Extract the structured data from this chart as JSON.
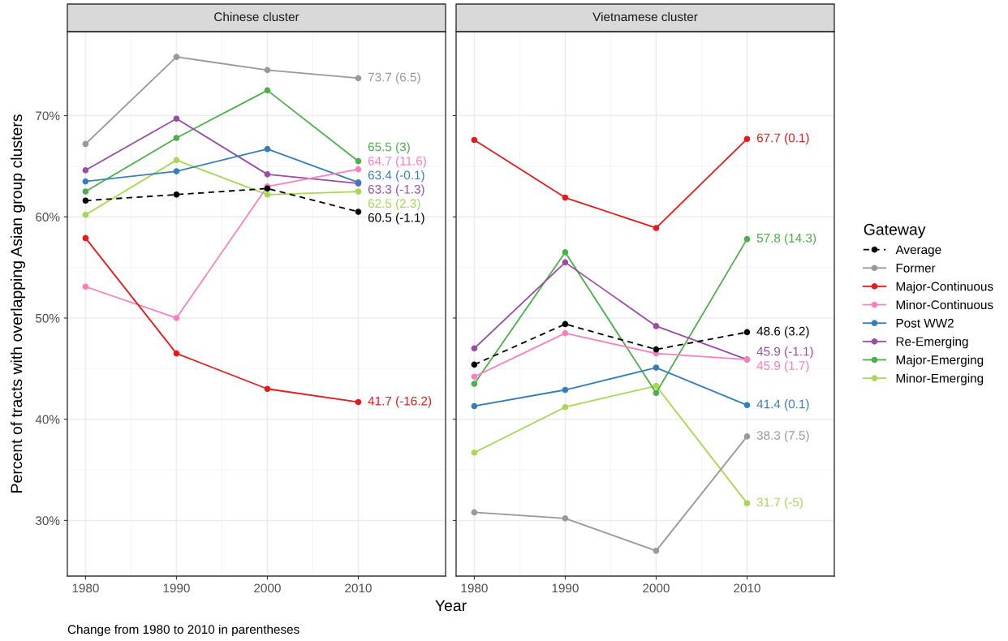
{
  "chart_data": [
    {
      "type": "line",
      "title": "Chinese cluster",
      "ylabel": "Percent of tracts with overlapping Asian group clusters",
      "xlabel": "Year",
      "annotations": [
        "Change from 1980 to 2010 in parentheses"
      ],
      "x": [
        1980,
        1990,
        2000,
        2010
      ],
      "xlim": [
        1978.0,
        2019.6
      ],
      "xticks": [
        1980,
        1990,
        2000,
        2010
      ],
      "ylim": [
        24.5,
        78.3
      ],
      "yticks": [
        {
          "value": 30,
          "label": "30%"
        },
        {
          "value": 40,
          "label": "40%"
        },
        {
          "value": 50,
          "label": "50%"
        },
        {
          "value": 60,
          "label": "60%"
        },
        {
          "value": 70,
          "label": "70%"
        }
      ],
      "grid": true,
      "marker": "circle",
      "legend": "right",
      "series": [
        {
          "name": "Average",
          "color": "#000000",
          "line_style": "dashed",
          "values": [
            61.6,
            62.2,
            62.8,
            60.5
          ],
          "value_labels": [
            null,
            null,
            null,
            "60.5 (-1.1)"
          ]
        },
        {
          "name": "Former",
          "color": "#999999",
          "values": [
            67.2,
            75.8,
            74.5,
            73.7
          ],
          "value_labels": [
            null,
            null,
            null,
            "73.7 (6.5)"
          ]
        },
        {
          "name": "Major-Continuous",
          "color": "#e41a1c",
          "values": [
            57.9,
            46.5,
            43.0,
            41.7
          ],
          "value_labels": [
            null,
            null,
            null,
            "41.7 (-16.2)"
          ]
        },
        {
          "name": "Minor-Continuous",
          "color": "#f781bf",
          "values": [
            53.1,
            50.0,
            63.0,
            64.7
          ],
          "value_labels": [
            null,
            null,
            null,
            "64.7 (11.6)"
          ]
        },
        {
          "name": "Post WW2",
          "color": "#377eb8",
          "values": [
            63.5,
            64.5,
            66.7,
            63.4
          ],
          "value_labels": [
            null,
            null,
            null,
            "63.4 (-0.1)"
          ]
        },
        {
          "name": "Re-Emerging",
          "color": "#984ea3",
          "values": [
            64.6,
            69.7,
            64.2,
            63.3
          ],
          "value_labels": [
            null,
            null,
            null,
            "63.3 (-1.3)"
          ]
        },
        {
          "name": "Major-Emerging",
          "color": "#4daf4a",
          "values": [
            62.5,
            67.8,
            72.5,
            65.5
          ],
          "value_labels": [
            null,
            null,
            null,
            "65.5 (3)"
          ]
        },
        {
          "name": "Minor-Emerging",
          "color": "#a6d854",
          "values": [
            60.2,
            65.6,
            62.2,
            62.5
          ],
          "value_labels": [
            null,
            null,
            null,
            "62.5 (2.3)"
          ]
        }
      ]
    },
    {
      "type": "line",
      "title": "Vietnamese cluster",
      "legend_title": "Gateway",
      "x": [
        1980,
        1990,
        2000,
        2010
      ],
      "xlim": [
        1978.0,
        2019.6
      ],
      "xticks": [
        1980,
        1990,
        2000,
        2010
      ],
      "ylim": [
        24.5,
        78.3
      ],
      "yticks": [
        {
          "value": 30,
          "label": null
        },
        {
          "value": 40,
          "label": null
        },
        {
          "value": 50,
          "label": null
        },
        {
          "value": 60,
          "label": null
        },
        {
          "value": 70,
          "label": null
        }
      ],
      "tick_labels": "x",
      "grid": true,
      "marker": "circle",
      "legend": "right",
      "series": [
        {
          "name": "Average",
          "color": "#000000",
          "line_style": "dashed",
          "values": [
            45.4,
            49.4,
            46.9,
            48.6
          ],
          "value_labels": [
            null,
            null,
            null,
            "48.6 (3.2)"
          ]
        },
        {
          "name": "Former",
          "color": "#999999",
          "values": [
            30.8,
            30.2,
            27.0,
            38.3
          ],
          "value_labels": [
            null,
            null,
            null,
            "38.3 (7.5)"
          ]
        },
        {
          "name": "Major-Continuous",
          "color": "#e41a1c",
          "values": [
            67.6,
            61.9,
            58.9,
            67.7
          ],
          "value_labels": [
            null,
            null,
            null,
            "67.7 (0.1)"
          ]
        },
        {
          "name": "Minor-Continuous",
          "color": "#f781bf",
          "values": [
            44.2,
            48.5,
            46.5,
            45.9
          ],
          "value_labels": [
            null,
            null,
            null,
            "45.9 (1.7)"
          ]
        },
        {
          "name": "Post WW2",
          "color": "#377eb8",
          "values": [
            41.3,
            42.9,
            45.1,
            41.4
          ],
          "value_labels": [
            null,
            null,
            null,
            "41.4 (0.1)"
          ]
        },
        {
          "name": "Re-Emerging",
          "color": "#984ea3",
          "values": [
            47.0,
            55.5,
            49.2,
            45.9
          ],
          "value_labels": [
            null,
            null,
            null,
            "45.9 (-1.1)"
          ]
        },
        {
          "name": "Major-Emerging",
          "color": "#4daf4a",
          "values": [
            43.5,
            56.5,
            42.6,
            57.8
          ],
          "value_labels": [
            null,
            null,
            null,
            "57.8 (14.3)"
          ]
        },
        {
          "name": "Minor-Emerging",
          "color": "#a6d854",
          "values": [
            36.7,
            41.2,
            43.3,
            31.7
          ],
          "value_labels": [
            null,
            null,
            null,
            "31.7 (-5)"
          ]
        }
      ]
    }
  ]
}
